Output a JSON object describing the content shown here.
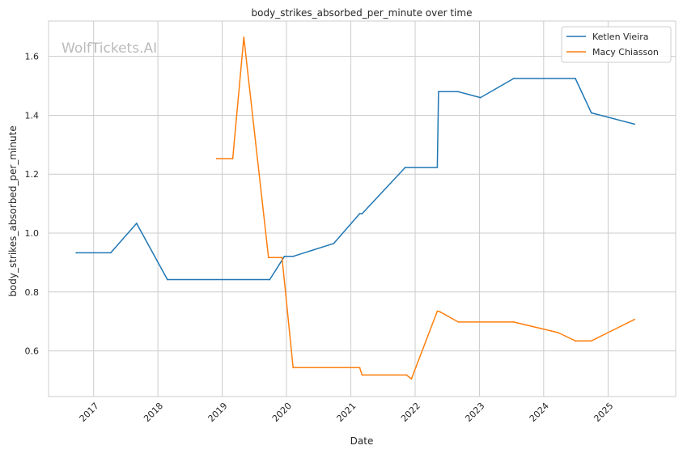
{
  "chart_data": {
    "type": "line",
    "title": "body_strikes_absorbed_per_minute over time",
    "xlabel": "Date",
    "ylabel": "body_strikes_absorbed_per_minute",
    "watermark": "WolfTickets.AI",
    "xlim": [
      "2016-04-20",
      "2026-01-20"
    ],
    "ylim": [
      0.445,
      1.72
    ],
    "x_ticks": [
      "2017",
      "2018",
      "2019",
      "2020",
      "2021",
      "2022",
      "2023",
      "2024",
      "2025"
    ],
    "y_ticks": [
      "0.6",
      "0.8",
      "1.0",
      "1.2",
      "1.4",
      "1.6"
    ],
    "grid": true,
    "legend_position": "top-right",
    "series": [
      {
        "name": "Ketlen Vieira",
        "color": "#1f77b4",
        "points": [
          [
            "2016-09-24",
            0.933
          ],
          [
            "2017-04-08",
            0.933
          ],
          [
            "2017-09-02",
            1.033
          ],
          [
            "2018-02-24",
            0.842
          ],
          [
            "2019-09-28",
            0.842
          ],
          [
            "2019-12-21",
            0.921
          ],
          [
            "2020-02-08",
            0.921
          ],
          [
            "2020-09-26",
            0.965
          ],
          [
            "2021-02-20",
            1.066
          ],
          [
            "2021-03-06",
            1.066
          ],
          [
            "2021-11-06",
            1.223
          ],
          [
            "2022-05-07",
            1.223
          ],
          [
            "2022-05-14",
            1.48
          ],
          [
            "2022-09-03",
            1.48
          ],
          [
            "2023-01-07",
            1.46
          ],
          [
            "2023-07-15",
            1.525
          ],
          [
            "2024-06-29",
            1.525
          ],
          [
            "2024-09-28",
            1.408
          ],
          [
            "2025-05-31",
            1.37
          ]
        ]
      },
      {
        "name": "Macy Chiasson",
        "color": "#ff7f0e",
        "points": [
          [
            "2018-11-30",
            1.253
          ],
          [
            "2019-03-02",
            1.253
          ],
          [
            "2019-05-04",
            1.665
          ],
          [
            "2019-09-21",
            0.917
          ],
          [
            "2019-12-07",
            0.917
          ],
          [
            "2020-02-08",
            0.543
          ],
          [
            "2021-02-20",
            0.543
          ],
          [
            "2021-03-06",
            0.518
          ],
          [
            "2021-11-13",
            0.518
          ],
          [
            "2021-12-11",
            0.505
          ],
          [
            "2022-05-07",
            0.735
          ],
          [
            "2022-05-21",
            0.733
          ],
          [
            "2022-09-03",
            0.698
          ],
          [
            "2023-07-15",
            0.698
          ],
          [
            "2024-03-23",
            0.662
          ],
          [
            "2024-06-29",
            0.634
          ],
          [
            "2024-09-28",
            0.634
          ],
          [
            "2025-05-31",
            0.707
          ]
        ]
      }
    ]
  }
}
